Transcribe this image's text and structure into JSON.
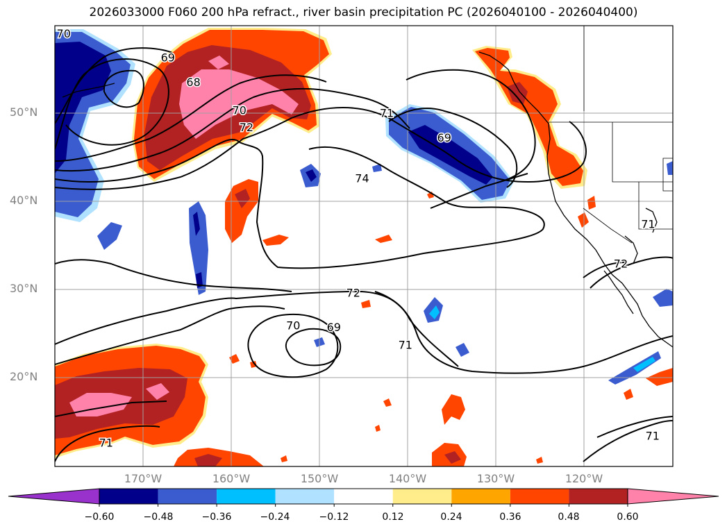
{
  "title": "2026033000 F060 200 hPa refract., river basin precipitation PC (2026040100 - 2026040400)",
  "lat_labels": [
    "50°N",
    "40°N",
    "30°N",
    "20°N"
  ],
  "lon_labels": [
    "170°W",
    "160°W",
    "150°W",
    "140°W",
    "130°W",
    "120°W"
  ],
  "contour_labels": [
    {
      "text": "69",
      "lon": -167.2,
      "lat": 56.3
    },
    {
      "text": "68",
      "lon": -164.3,
      "lat": 53.5
    },
    {
      "text": "70",
      "lon": -159.1,
      "lat": 50.3
    },
    {
      "text": "72",
      "lon": -158.3,
      "lat": 48.4
    },
    {
      "text": "71",
      "lon": -142.4,
      "lat": 50.0
    },
    {
      "text": "69",
      "lon": -135.9,
      "lat": 47.2
    },
    {
      "text": "74",
      "lon": -145.2,
      "lat": 42.6
    },
    {
      "text": "72",
      "lon": -146.2,
      "lat": 29.6
    },
    {
      "text": "70",
      "lon": -153.0,
      "lat": 25.9
    },
    {
      "text": "69",
      "lon": -148.4,
      "lat": 25.7
    },
    {
      "text": "71",
      "lon": -140.3,
      "lat": 23.7
    },
    {
      "text": "71",
      "lon": -112.8,
      "lat": 37.4
    },
    {
      "text": "72",
      "lon": -115.9,
      "lat": 32.9
    },
    {
      "text": "71",
      "lon": -174.2,
      "lat": 12.6
    },
    {
      "text": "71",
      "lon": -112.3,
      "lat": 13.4
    },
    {
      "text": "70",
      "lon": -179.0,
      "lat": 59.0
    }
  ],
  "colorbar": {
    "labels": [
      "−0.60",
      "−0.48",
      "−0.36",
      "−0.24",
      "−0.12",
      "0.12",
      "0.24",
      "0.36",
      "0.48",
      "0.60"
    ],
    "colors": [
      "#9932cc",
      "#00008b",
      "#3a5ccf",
      "#00bfff",
      "#b0e2ff",
      "#ffffff",
      "#ffec8b",
      "#ffa500",
      "#ff4500",
      "#b22222",
      "#ff82ab"
    ]
  }
}
